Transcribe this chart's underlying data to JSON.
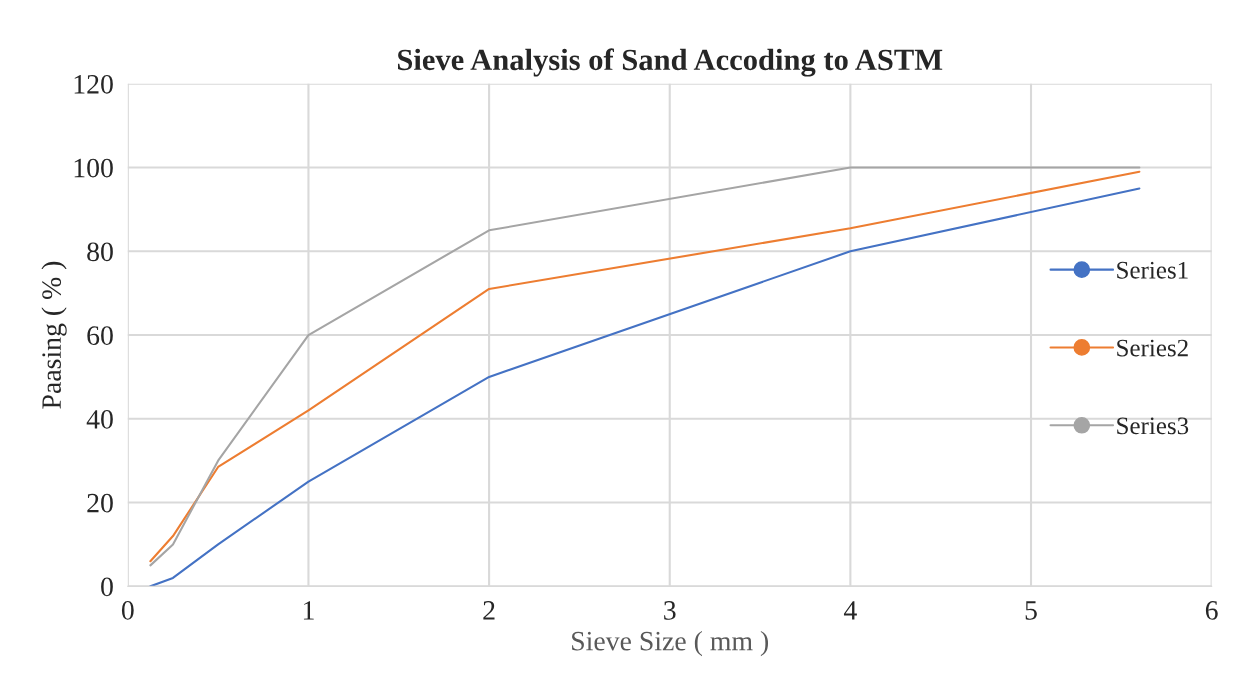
{
  "chart_data": {
    "type": "line",
    "title": "Sieve Analysis of Sand Accoding to ASTM",
    "xlabel": "Sieve Size ( mm )",
    "ylabel": "Paasing ( % )",
    "x": [
      0.125,
      0.25,
      0.5,
      1,
      2,
      4,
      5.6
    ],
    "series": [
      {
        "name": "Series1",
        "color": "#4472c4",
        "values": [
          0,
          2,
          10,
          25,
          50,
          80,
          95
        ]
      },
      {
        "name": "Series2",
        "color": "#ed7d31",
        "values": [
          6,
          12,
          28.5,
          42,
          71,
          85.5,
          99
        ]
      },
      {
        "name": "Series3",
        "color": "#a5a5a5",
        "values": [
          5,
          10,
          30,
          60,
          85,
          100,
          100
        ]
      }
    ],
    "xlim": [
      0,
      6
    ],
    "xticks": [
      0,
      1,
      2,
      3,
      4,
      5,
      6
    ],
    "ylim": [
      0,
      120
    ],
    "yticks": [
      0,
      20,
      40,
      60,
      80,
      100,
      120
    ],
    "grid": true,
    "legend": "right"
  }
}
